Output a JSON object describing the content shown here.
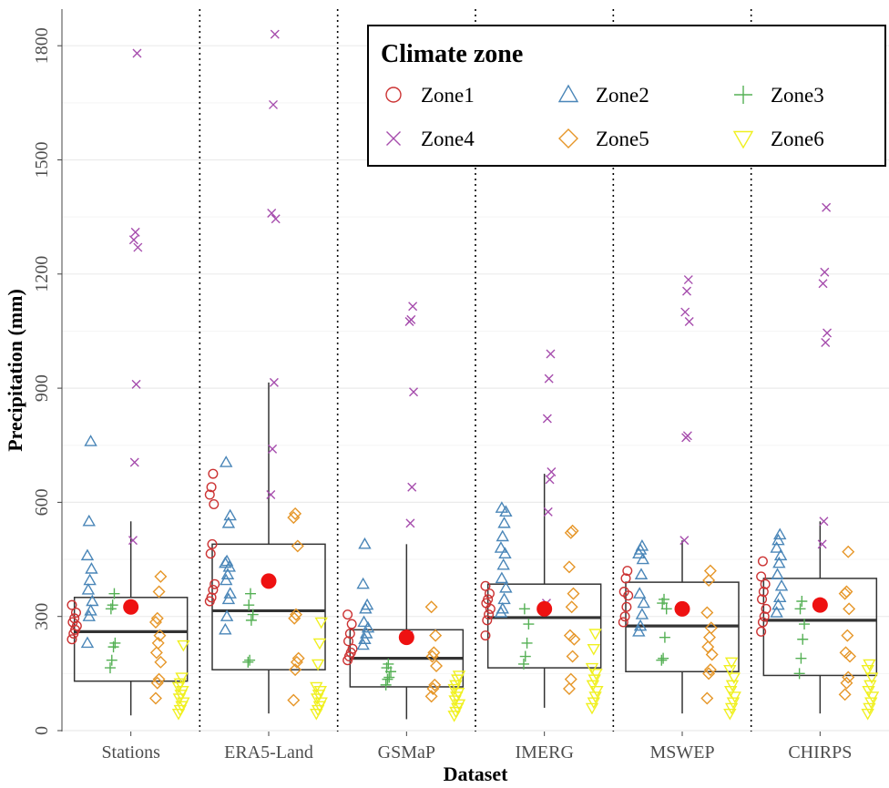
{
  "chart_data": {
    "type": "box",
    "xlabel": "Dataset",
    "ylabel": "Precipitation (mm)",
    "ylim": [
      0,
      1900
    ],
    "yticks": [
      0,
      300,
      600,
      900,
      1200,
      1500,
      1800
    ],
    "grid": true,
    "legend": {
      "title": "Climate zone",
      "placement": "top-right",
      "entries": [
        {
          "name": "Zone1",
          "color": "#cc3333",
          "shape": "circle"
        },
        {
          "name": "Zone2",
          "color": "#4a86b8",
          "shape": "triangle-up"
        },
        {
          "name": "Zone3",
          "color": "#55b055",
          "shape": "plus"
        },
        {
          "name": "Zone4",
          "color": "#a64dad",
          "shape": "cross"
        },
        {
          "name": "Zone5",
          "color": "#e69628",
          "shape": "diamond"
        },
        {
          "name": "Zone6",
          "color": "#f0f020",
          "shape": "triangle-down"
        }
      ]
    },
    "mean_marker_color": "#ee1111",
    "categories": [
      "Stations",
      "ERA5-Land",
      "GSMaP",
      "IMERG",
      "MSWEP",
      "CHIRPS"
    ],
    "boxes": [
      {
        "whisker_low": 40,
        "q1": 130,
        "median": 260,
        "q3": 350,
        "whisker_high": 550,
        "mean": 325
      },
      {
        "whisker_low": 45,
        "q1": 160,
        "median": 315,
        "q3": 490,
        "whisker_high": 915,
        "mean": 393
      },
      {
        "whisker_low": 30,
        "q1": 115,
        "median": 190,
        "q3": 265,
        "whisker_high": 490,
        "mean": 245
      },
      {
        "whisker_low": 60,
        "q1": 165,
        "median": 297,
        "q3": 385,
        "whisker_high": 675,
        "mean": 320
      },
      {
        "whisker_low": 45,
        "q1": 155,
        "median": 275,
        "q3": 390,
        "whisker_high": 500,
        "mean": 320
      },
      {
        "whisker_low": 45,
        "q1": 145,
        "median": 290,
        "q3": 400,
        "whisker_high": 550,
        "mean": 330
      }
    ],
    "points": {
      "Stations": {
        "Zone1": [
          240,
          255,
          265,
          275,
          285,
          295,
          310,
          330
        ],
        "Zone2": [
          230,
          300,
          315,
          340,
          370,
          395,
          425,
          460,
          550,
          760
        ],
        "Zone3": [
          165,
          185,
          220,
          230,
          320,
          330,
          360
        ],
        "Zone4": [
          500,
          705,
          910,
          1270,
          1290,
          1310,
          1780
        ],
        "Zone5": [
          85,
          125,
          135,
          180,
          205,
          230,
          250,
          285,
          295,
          365,
          405
        ],
        "Zone6": [
          45,
          55,
          65,
          75,
          85,
          95,
          105,
          115,
          125,
          140,
          225
        ]
      },
      "ERA5-Land": {
        "Zone1": [
          340,
          350,
          370,
          385,
          465,
          490,
          595,
          620,
          640,
          675
        ],
        "Zone2": [
          265,
          300,
          345,
          360,
          395,
          410,
          430,
          440,
          445,
          545,
          565,
          705
        ],
        "Zone3": [
          180,
          185,
          290,
          305,
          330,
          360
        ],
        "Zone4": [
          620,
          740,
          915,
          1345,
          1360,
          1645,
          1830
        ],
        "Zone5": [
          80,
          160,
          180,
          190,
          295,
          305,
          485,
          560,
          570
        ],
        "Zone6": [
          45,
          55,
          65,
          75,
          85,
          95,
          105,
          115,
          175,
          230,
          285
        ]
      },
      "GSMaP": {
        "Zone1": [
          185,
          195,
          205,
          215,
          235,
          255,
          280,
          305
        ],
        "Zone2": [
          225,
          240,
          255,
          270,
          285,
          320,
          330,
          385,
          490
        ],
        "Zone3": [
          120,
          135,
          140,
          155,
          165,
          175
        ],
        "Zone4": [
          250,
          545,
          640,
          890,
          1075,
          1080,
          1115
        ],
        "Zone5": [
          90,
          110,
          120,
          170,
          195,
          205,
          250,
          325
        ],
        "Zone6": [
          40,
          50,
          60,
          70,
          80,
          90,
          100,
          110,
          120,
          135,
          145
        ]
      },
      "IMERG": {
        "Zone1": [
          250,
          290,
          305,
          320,
          335,
          345,
          360,
          380
        ],
        "Zone2": [
          310,
          320,
          345,
          375,
          400,
          435,
          465,
          480,
          510,
          545,
          575,
          585
        ],
        "Zone3": [
          175,
          195,
          230,
          280,
          320
        ],
        "Zone4": [
          335,
          575,
          660,
          680,
          820,
          925,
          990
        ],
        "Zone5": [
          110,
          135,
          195,
          240,
          250,
          325,
          360,
          430,
          520,
          525
        ],
        "Zone6": [
          60,
          75,
          90,
          105,
          120,
          135,
          150,
          165,
          215,
          255
        ]
      },
      "MSWEP": {
        "Zone1": [
          285,
          300,
          325,
          355,
          365,
          400,
          420
        ],
        "Zone2": [
          260,
          275,
          305,
          335,
          360,
          410,
          450,
          465,
          475,
          485
        ],
        "Zone3": [
          185,
          190,
          245,
          320,
          335,
          345
        ],
        "Zone4": [
          500,
          770,
          775,
          1075,
          1100,
          1155,
          1185
        ],
        "Zone5": [
          85,
          150,
          160,
          200,
          220,
          245,
          270,
          310,
          395,
          420
        ],
        "Zone6": [
          45,
          60,
          75,
          90,
          105,
          120,
          140,
          160,
          180
        ]
      },
      "CHIRPS": {
        "Zone1": [
          260,
          285,
          300,
          320,
          345,
          365,
          385,
          405,
          445
        ],
        "Zone2": [
          310,
          330,
          350,
          380,
          410,
          440,
          460,
          480,
          500,
          515
        ],
        "Zone3": [
          150,
          190,
          240,
          280,
          320,
          340
        ],
        "Zone4": [
          490,
          550,
          1020,
          1045,
          1175,
          1205,
          1375
        ],
        "Zone5": [
          95,
          125,
          140,
          195,
          205,
          250,
          320,
          360,
          365,
          470
        ],
        "Zone6": [
          45,
          60,
          75,
          90,
          105,
          120,
          140,
          160,
          175
        ]
      }
    }
  }
}
